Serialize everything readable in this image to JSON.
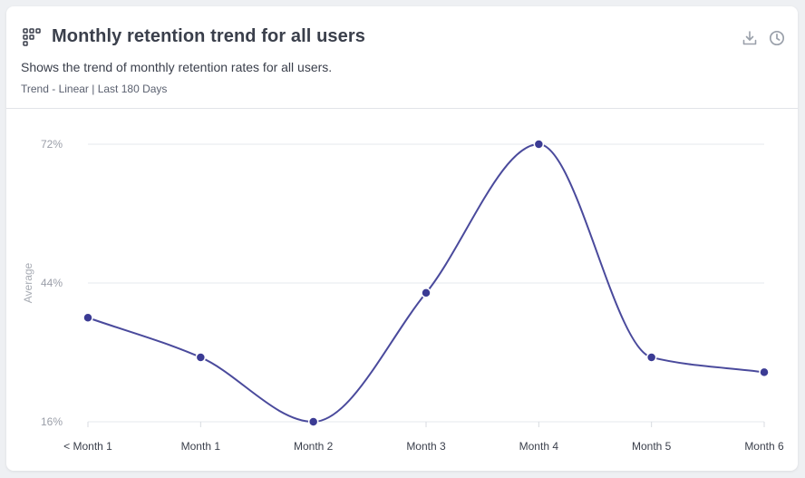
{
  "card": {
    "title": "Monthly retention trend for all users",
    "subtitle": "Shows the trend of monthly retention rates for all users.",
    "meta": "Trend - Linear | Last 180 Days",
    "icons": {
      "title": "grid-icon",
      "download": "download-icon",
      "history": "clock-icon"
    }
  },
  "colors": {
    "line": "#4a4a9c",
    "point": "#3b3b94",
    "grid": "#e6e8ec",
    "icon": "#9aa0aa"
  },
  "chart_data": {
    "type": "line",
    "categories": [
      "< Month 1",
      "Month 1",
      "Month 2",
      "Month 3",
      "Month 4",
      "Month 5",
      "Month 6"
    ],
    "series": [
      {
        "name": "Average",
        "values": [
          37,
          29,
          16,
          42,
          72,
          29,
          26
        ]
      }
    ],
    "ylabel": "Average",
    "yticks": [
      16,
      44,
      72
    ],
    "ytick_labels": [
      "16%",
      "44%",
      "72%"
    ],
    "ylim": [
      16,
      72
    ],
    "grid": true,
    "curve": "smooth"
  }
}
